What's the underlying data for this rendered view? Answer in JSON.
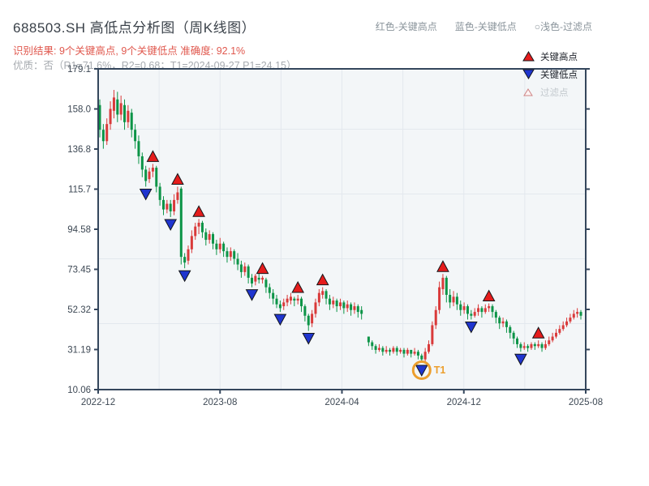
{
  "header": {
    "title": "688503.SH 高低点分析图（周K线图）",
    "color_legend": [
      {
        "label": "红色-关键高点"
      },
      {
        "label": "蓝色-关键低点"
      },
      {
        "label": "○浅色-过滤点"
      }
    ],
    "result_line": "识别结果: 9个关键高点, 9个关键低点  准确度: 92.1%",
    "quality_line": "优质：否（R1=71.6%，R2=0.68；T1=2024-09-27 P1=24.15）"
  },
  "chart_data": {
    "type": "candlestick",
    "timeframe": "weekly",
    "symbol": "688503.SH",
    "y_tick_labels": [
      "179.1",
      "158.0",
      "136.8",
      "115.7",
      "94.58",
      "73.45",
      "52.32",
      "31.19",
      "10.06"
    ],
    "x_tick_labels": [
      "2022-12",
      "2023-08",
      "2024-04",
      "2024-12",
      "2025-08"
    ],
    "ylim": [
      10.06,
      179.1
    ],
    "grid": true,
    "legend_position": "top-right",
    "legend": [
      {
        "label": "关键高点",
        "marker": "red-up-triangle"
      },
      {
        "label": "关键低点",
        "marker": "blue-down-triangle"
      },
      {
        "label": "过滤点",
        "marker": "outline-triangle"
      }
    ],
    "candles_format": [
      "open",
      "close",
      "low",
      "high"
    ],
    "candles": [
      [
        160,
        147,
        143,
        163
      ],
      [
        147,
        141,
        137,
        150
      ],
      [
        141,
        150,
        139,
        153
      ],
      [
        150,
        158,
        147,
        162
      ],
      [
        157,
        164,
        153,
        168
      ],
      [
        163,
        155,
        151,
        167
      ],
      [
        155,
        161,
        152,
        165
      ],
      [
        160,
        151,
        147,
        163
      ],
      [
        151,
        157,
        148,
        160
      ],
      [
        156,
        147,
        143,
        158
      ],
      [
        147,
        141,
        137,
        150
      ],
      [
        141,
        133,
        129,
        144
      ],
      [
        133,
        126,
        122,
        135
      ],
      [
        126,
        120,
        117,
        128
      ],
      [
        121,
        125,
        119,
        127
      ],
      [
        125,
        127,
        122,
        129
      ],
      [
        127,
        117,
        114,
        128
      ],
      [
        117,
        110,
        107,
        119
      ],
      [
        110,
        105,
        102,
        112
      ],
      [
        105,
        108,
        103,
        110
      ],
      [
        108,
        104,
        101,
        110
      ],
      [
        104,
        110,
        102,
        113
      ],
      [
        110,
        114,
        108,
        117
      ],
      [
        116,
        80,
        76,
        117
      ],
      [
        80,
        77,
        74,
        82
      ],
      [
        78,
        84,
        76,
        86
      ],
      [
        84,
        91,
        82,
        94
      ],
      [
        91,
        96,
        89,
        98
      ],
      [
        96,
        98,
        92,
        100
      ],
      [
        98,
        93,
        90,
        99
      ],
      [
        93,
        89,
        86,
        95
      ],
      [
        89,
        92,
        87,
        94
      ],
      [
        92,
        87,
        84,
        93
      ],
      [
        87,
        84,
        81,
        89
      ],
      [
        84,
        87,
        82,
        90
      ],
      [
        87,
        83,
        80,
        88
      ],
      [
        83,
        80,
        77,
        85
      ],
      [
        80,
        83,
        78,
        85
      ],
      [
        83,
        79,
        76,
        84
      ],
      [
        79,
        76,
        73,
        82
      ],
      [
        76,
        72,
        69,
        78
      ],
      [
        72,
        75,
        70,
        77
      ],
      [
        75,
        69,
        66,
        76
      ],
      [
        69,
        66,
        64,
        71
      ],
      [
        67,
        70,
        65,
        71
      ],
      [
        69,
        68,
        66,
        72
      ],
      [
        68,
        69,
        66,
        70
      ],
      [
        68,
        64,
        61,
        69
      ],
      [
        64,
        61,
        58,
        66
      ],
      [
        61,
        58,
        55,
        63
      ],
      [
        58,
        55,
        53,
        60
      ],
      [
        55,
        53,
        51,
        57
      ],
      [
        54,
        56,
        52,
        58
      ],
      [
        56,
        58,
        54,
        60
      ],
      [
        57,
        59,
        55,
        61
      ],
      [
        58,
        57,
        54,
        59
      ],
      [
        57,
        58,
        55,
        60
      ],
      [
        58,
        54,
        51,
        59
      ],
      [
        54,
        49,
        46,
        55
      ],
      [
        49,
        44,
        41,
        50
      ],
      [
        45,
        50,
        43,
        52
      ],
      [
        50,
        56,
        48,
        58
      ],
      [
        56,
        61,
        54,
        63
      ],
      [
        60,
        62,
        58,
        64
      ],
      [
        62,
        58,
        55,
        63
      ],
      [
        58,
        55,
        52,
        60
      ],
      [
        55,
        57,
        53,
        59
      ],
      [
        57,
        54,
        51,
        58
      ],
      [
        54,
        56,
        52,
        58
      ],
      [
        56,
        53,
        50,
        57
      ],
      [
        53,
        55,
        51,
        57
      ],
      [
        55,
        52,
        49,
        56
      ],
      [
        52,
        54,
        50,
        56
      ],
      [
        54,
        51,
        48,
        55
      ],
      [
        52,
        50,
        47,
        54
      ],
      null,
      [
        38,
        35,
        33,
        38
      ],
      [
        35,
        33,
        31,
        36
      ],
      [
        33,
        31,
        29,
        34
      ],
      [
        31,
        32,
        30,
        34
      ],
      [
        32,
        30,
        28,
        33
      ],
      [
        30,
        31,
        29,
        33
      ],
      [
        31,
        30,
        28,
        32
      ],
      [
        30,
        32,
        29,
        33
      ],
      [
        32,
        30,
        28,
        33
      ],
      [
        30,
        31,
        29,
        32
      ],
      [
        31,
        29,
        27,
        32
      ],
      [
        29,
        31,
        28,
        32
      ],
      [
        31,
        29,
        27,
        31
      ],
      [
        29,
        30,
        28,
        32
      ],
      [
        30,
        28,
        26,
        31
      ],
      [
        28,
        26,
        24.15,
        29
      ],
      [
        26,
        30,
        25,
        32
      ],
      [
        30,
        34,
        29,
        36
      ],
      [
        34,
        44,
        33,
        46
      ],
      [
        44,
        52,
        42,
        54
      ],
      [
        52,
        64,
        50,
        67
      ],
      [
        63,
        69,
        60,
        71
      ],
      [
        69,
        60,
        56,
        70
      ],
      [
        60,
        56,
        53,
        63
      ],
      [
        56,
        59,
        54,
        62
      ],
      [
        59,
        55,
        52,
        61
      ],
      [
        55,
        52,
        49,
        57
      ],
      [
        52,
        54,
        50,
        56
      ],
      [
        54,
        50,
        47,
        55
      ],
      [
        50,
        49,
        47,
        52
      ],
      [
        49,
        51,
        48,
        53
      ],
      [
        51,
        53,
        49,
        55
      ],
      [
        53,
        51,
        48,
        54
      ],
      [
        51,
        53,
        50,
        55
      ],
      [
        53,
        54,
        51,
        55.5
      ],
      [
        54,
        51,
        48,
        55
      ],
      [
        51,
        48,
        45,
        52
      ],
      [
        48,
        45,
        42,
        49
      ],
      [
        45,
        46,
        43,
        48
      ],
      [
        46,
        43,
        40,
        47
      ],
      [
        43,
        40,
        37,
        44
      ],
      [
        40,
        37,
        34,
        41
      ],
      [
        37,
        34,
        32,
        38
      ],
      [
        34,
        32,
        30,
        35
      ],
      [
        32,
        33,
        31,
        35
      ],
      [
        33,
        32,
        30,
        34
      ],
      [
        32,
        34,
        31,
        35
      ],
      [
        34,
        33,
        31,
        35
      ],
      [
        33,
        34,
        32,
        36
      ],
      [
        34,
        32,
        30,
        35
      ],
      [
        32,
        34,
        31,
        36
      ],
      [
        34,
        36,
        33,
        38
      ],
      [
        36,
        38,
        35,
        40
      ],
      [
        38,
        40,
        37,
        42
      ],
      [
        40,
        42,
        39,
        44
      ],
      [
        42,
        44,
        41,
        46
      ],
      [
        44,
        46,
        43,
        48
      ],
      [
        46,
        48,
        45,
        50
      ],
      [
        48,
        50,
        47,
        52
      ],
      [
        50,
        51,
        48,
        53
      ],
      [
        51,
        49,
        47,
        52
      ]
    ],
    "key_highs": [
      {
        "week": 15,
        "price": 129
      },
      {
        "week": 22,
        "price": 117
      },
      {
        "week": 28,
        "price": 100
      },
      {
        "week": 46,
        "price": 70
      },
      {
        "week": 56,
        "price": 60
      },
      {
        "week": 63,
        "price": 64
      },
      {
        "week": 97,
        "price": 71
      },
      {
        "week": 110,
        "price": 55.5
      },
      {
        "week": 124,
        "price": 36
      }
    ],
    "key_lows": [
      {
        "week": 13,
        "price": 117
      },
      {
        "week": 20,
        "price": 101
      },
      {
        "week": 24,
        "price": 74
      },
      {
        "week": 43,
        "price": 64
      },
      {
        "week": 51,
        "price": 51
      },
      {
        "week": 59,
        "price": 41
      },
      {
        "week": 91,
        "price": 24.15
      },
      {
        "week": 105,
        "price": 47
      },
      {
        "week": 119,
        "price": 30
      }
    ],
    "annotation": {
      "label": "T1",
      "week": 91,
      "price": 24.15
    },
    "colors": {
      "up_candle": "#d93a3a",
      "down_candle": "#0c9447",
      "key_high_marker": "#e51c1c",
      "key_low_marker": "#1f35cf",
      "annotation": "#ec9f2e",
      "plot_bg": "#f3f6f8",
      "border": "#34465c",
      "gridline": "#e3e8ee"
    }
  }
}
